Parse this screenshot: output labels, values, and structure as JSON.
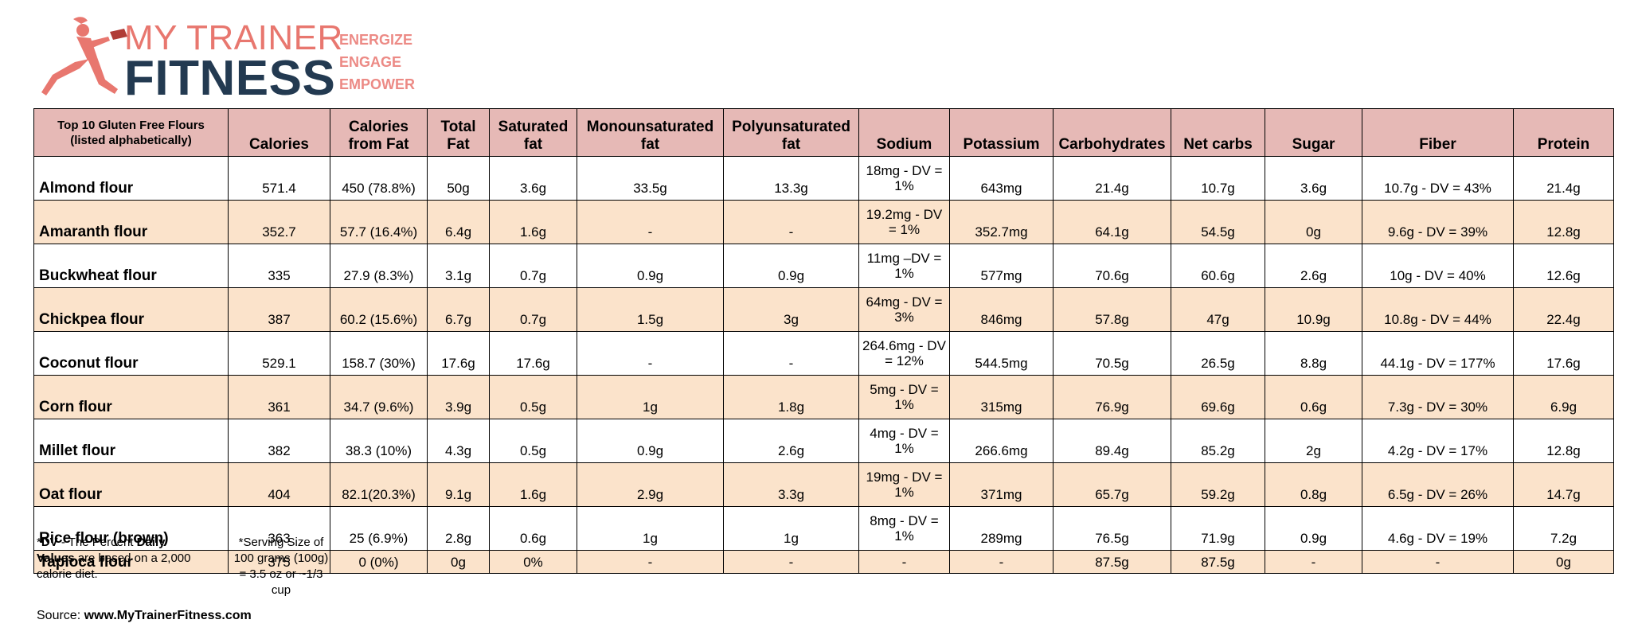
{
  "logo": {
    "line1": "MY TRAINER",
    "line2": "FITNESS",
    "tagline": [
      "ENERGIZE",
      "ENGAGE",
      "EMPOWER"
    ],
    "icon": "runner-figure-icon",
    "colors": {
      "coral": "#e8776f",
      "navy": "#233a51"
    }
  },
  "table": {
    "header_first_line1": "Top 10 Gluten Free Flours",
    "header_first_line2": "(listed alphabetically)",
    "columns": [
      "Calories",
      "Calories from Fat",
      "Total Fat",
      "Saturated fat",
      "Monounsaturated fat",
      "Polyunsaturated fat",
      "Sodium",
      "Potassium",
      "Carbohydrates",
      "Net carbs",
      "Sugar",
      "Fiber",
      "Protein"
    ],
    "rows": [
      [
        "Almond flour",
        "571.4",
        "450 (78.8%)",
        "50g",
        "3.6g",
        "33.5g",
        "13.3g",
        "18mg - DV = 1%",
        "643mg",
        "21.4g",
        "10.7g",
        "3.6g",
        "10.7g - DV = 43%",
        "21.4g"
      ],
      [
        "Amaranth flour",
        "352.7",
        "57.7 (16.4%)",
        "6.4g",
        "1.6g",
        "-",
        "-",
        "19.2mg - DV = 1%",
        "352.7mg",
        "64.1g",
        "54.5g",
        "0g",
        "9.6g - DV = 39%",
        "12.8g"
      ],
      [
        "Buckwheat flour",
        "335",
        "27.9 (8.3%)",
        "3.1g",
        "0.7g",
        "0.9g",
        "0.9g",
        "11mg –DV = 1%",
        "577mg",
        "70.6g",
        "60.6g",
        "2.6g",
        "10g - DV = 40%",
        "12.6g"
      ],
      [
        "Chickpea flour",
        "387",
        "60.2 (15.6%)",
        "6.7g",
        "0.7g",
        "1.5g",
        "3g",
        "64mg - DV = 3%",
        "846mg",
        "57.8g",
        "47g",
        "10.9g",
        "10.8g - DV = 44%",
        "22.4g"
      ],
      [
        "Coconut flour",
        "529.1",
        "158.7 (30%)",
        "17.6g",
        "17.6g",
        "-",
        "-",
        "264.6mg - DV = 12%",
        "544.5mg",
        "70.5g",
        "26.5g",
        "8.8g",
        "44.1g - DV = 177%",
        "17.6g"
      ],
      [
        "Corn flour",
        "361",
        "34.7 (9.6%)",
        "3.9g",
        "0.5g",
        "1g",
        "1.8g",
        "5mg - DV = 1%",
        "315mg",
        "76.9g",
        "69.6g",
        "0.6g",
        "7.3g - DV = 30%",
        "6.9g"
      ],
      [
        "Millet flour",
        "382",
        "38.3 (10%)",
        "4.3g",
        "0.5g",
        "0.9g",
        "2.6g",
        "4mg - DV = 1%",
        "266.6mg",
        "89.4g",
        "85.2g",
        "2g",
        "4.2g - DV = 17%",
        "12.8g"
      ],
      [
        "Oat flour",
        "404",
        "82.1(20.3%)",
        "9.1g",
        "1.6g",
        "2.9g",
        "3.3g",
        "19mg - DV = 1%",
        "371mg",
        "65.7g",
        "59.2g",
        "0.8g",
        "6.5g - DV = 26%",
        "14.7g"
      ],
      [
        "Rice flour (brown)",
        "363",
        "25 (6.9%)",
        "2.8g",
        "0.6g",
        "1g",
        "1g",
        "8mg - DV = 1%",
        "289mg",
        "76.5g",
        "71.9g",
        "0.9g",
        "4.6g - DV = 19%",
        "7.2g"
      ],
      [
        "Tapioca flour",
        "375",
        "0 (0%)",
        "0g",
        "0%",
        "-",
        "-",
        "-",
        "-",
        "87.5g",
        "87.5g",
        "-",
        "-",
        "0g"
      ]
    ],
    "colors": {
      "header_bg": "#e6b9b6",
      "alt_row_bg": "#fbe3cb"
    }
  },
  "footnote_dv": {
    "star": "*",
    "dv": "DV",
    "t1": " - The Percent ",
    "daily_values": "Daily Values",
    "t2": " are based on a 2,000 calorie diet."
  },
  "footnote_serving": "*Serving Size of 100 grams (100g) = 3.5 oz or ~1/3 cup",
  "source": {
    "label": "Source: ",
    "url": "www.MyTrainerFitness.com"
  }
}
